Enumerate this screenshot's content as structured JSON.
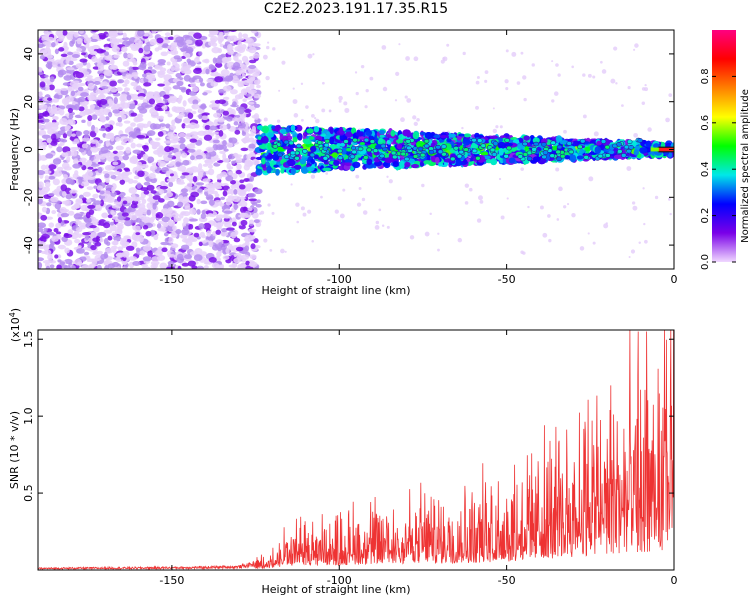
{
  "title": "C2E2.2023.191.17.35.R15",
  "chart_data": [
    {
      "type": "heatmap",
      "xlabel": "Height of straight line (km)",
      "ylabel": "Frequency (Hz)",
      "xlim": [
        -190,
        0
      ],
      "ylim": [
        -50,
        50
      ],
      "xticks": [
        -150,
        -100,
        -50,
        0
      ],
      "yticks": [
        -40,
        -20,
        0,
        20,
        40
      ],
      "colorbar": {
        "label": "Normalized spectral amplitude",
        "range": [
          0,
          1
        ],
        "ticks": [
          "0.0",
          "0.2",
          "0.4",
          "0.6",
          "0.8"
        ],
        "colors": [
          "#f0d8ff",
          "#7a00e8",
          "#0000ff",
          "#00e8e8",
          "#00ff00",
          "#ffff00",
          "#ff8000",
          "#ff0000",
          "#ff0080"
        ]
      },
      "features": [
        {
          "region": "noise",
          "x_range": [
            -190,
            -124
          ],
          "freq_range": [
            -50,
            50
          ],
          "amplitude_range": [
            0.0,
            0.2
          ]
        },
        {
          "region": "signal",
          "x_range": [
            -124,
            0
          ],
          "freq_half_width_start": 9,
          "freq_half_width_end": 2,
          "amplitude_range": [
            0.1,
            1.0
          ]
        }
      ]
    },
    {
      "type": "line",
      "xlabel": "Height of straight line (km)",
      "ylabel": "SNR (10 * v/v)",
      "multiplier": "(x10",
      "multiplier_exp": "4",
      "multiplier_close": ")",
      "xlim": [
        -190,
        0
      ],
      "ylim": [
        0,
        15600
      ],
      "xticks": [
        -150,
        -100,
        -50,
        0
      ],
      "yticks": [
        5000,
        10000,
        15000
      ],
      "ytick_labels": [
        "0.5",
        "1.0",
        "1.5"
      ],
      "color": "#ee3333",
      "x": [
        -190,
        -175,
        -160,
        -145,
        -130,
        -125,
        -120,
        -115,
        -110,
        -105,
        -100,
        -95,
        -90,
        -85,
        -80,
        -75,
        -70,
        -65,
        -60,
        -55,
        -50,
        -45,
        -40,
        -35,
        -30,
        -25,
        -20,
        -15,
        -12,
        -10,
        -8,
        -5,
        -2,
        0
      ],
      "y": [
        100,
        120,
        130,
        150,
        200,
        400,
        900,
        1600,
        2100,
        1700,
        2000,
        2300,
        2300,
        2600,
        2700,
        2700,
        2700,
        2800,
        3000,
        3300,
        3500,
        3800,
        4300,
        4800,
        5700,
        6200,
        6500,
        6800,
        7000,
        6200,
        6800,
        6500,
        10500,
        12000
      ]
    }
  ]
}
